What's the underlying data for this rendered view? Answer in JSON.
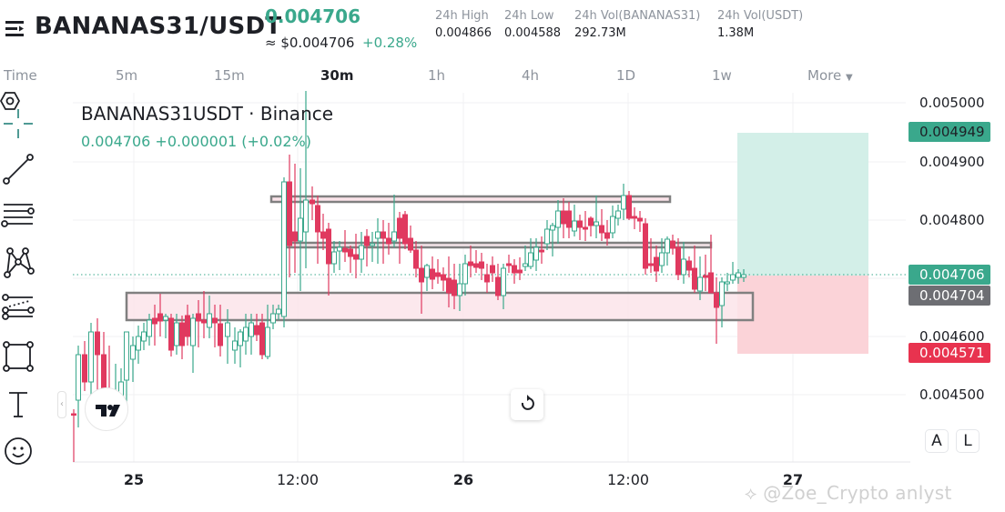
{
  "header": {
    "pair": "BANANAS31/USDT",
    "last_price": "0.004706",
    "usd_price": "≈ $0.004706",
    "change_pct": "+0.28%",
    "stats": [
      {
        "label": "24h High",
        "value": "0.004866"
      },
      {
        "label": "24h Low",
        "value": "0.004588"
      },
      {
        "label": "24h Vol(BANANAS31)",
        "value": "292.73M"
      },
      {
        "label": "24h Vol(USDT)",
        "value": "1.38M"
      }
    ]
  },
  "intervals": {
    "items": [
      "Time",
      "5m",
      "15m",
      "30m",
      "1h",
      "4h",
      "1D",
      "1w",
      "More"
    ],
    "active": "30m"
  },
  "chart": {
    "symbol_title": "BANANAS31USDT · Binance",
    "symbol_sub": "0.004706  +0.000001 (+0.02%)",
    "y_axis": [
      "0.005000",
      "0.004900",
      "0.004800",
      "0.004600",
      "0.004500"
    ],
    "price_tags": {
      "take_profit": "0.004949",
      "current": "0.004706",
      "entry": "0.004704",
      "stop_loss": "0.004571"
    },
    "x_axis": [
      {
        "label": "25",
        "bold": true
      },
      {
        "label": "12:00",
        "bold": false
      },
      {
        "label": "26",
        "bold": true
      },
      {
        "label": "12:00",
        "bold": false
      },
      {
        "label": "27",
        "bold": true
      }
    ],
    "scale_buttons": [
      "A",
      "L"
    ],
    "watermark": "@Zoe_Crypto anlyst",
    "colors": {
      "up": "#3aa88c",
      "down": "#e0395f",
      "tp_zone": "#d3efe8",
      "sl_zone": "#fbd3d8",
      "zone_box": "#fce4ea",
      "box_border": "#808080",
      "tag_green": "#3aa88c",
      "tag_gray": "#6d6e73",
      "tag_red": "#e8334f"
    }
  },
  "toolbar": {
    "tools": [
      "crosshair",
      "trend-line",
      "horizontal-lines",
      "pattern",
      "fib-channel",
      "rectangle",
      "text",
      "emoji"
    ]
  },
  "chart_data": {
    "type": "candlestick",
    "title": "BANANAS31USDT · Binance",
    "interval": "30m",
    "x_ticks": [
      "25",
      "12:00",
      "26",
      "12:00",
      "27"
    ],
    "y_ticks": [
      0.0045,
      0.0046,
      0.0047,
      0.0048,
      0.0049,
      0.005
    ],
    "ylim": [
      0.00444,
      0.00502
    ],
    "last_price": 0.004706,
    "annotations": [
      {
        "type": "zone",
        "label": "support box",
        "from": 0.00464,
        "to": 0.004685
      },
      {
        "type": "zone",
        "label": "resistance box top",
        "from": 0.00483,
        "to": 0.00484
      },
      {
        "type": "zone",
        "label": "mid box",
        "from": 0.004755,
        "to": 0.00476
      },
      {
        "type": "long-position",
        "take_profit": 0.004949,
        "entry": 0.004704,
        "stop_loss": 0.004571
      }
    ]
  }
}
